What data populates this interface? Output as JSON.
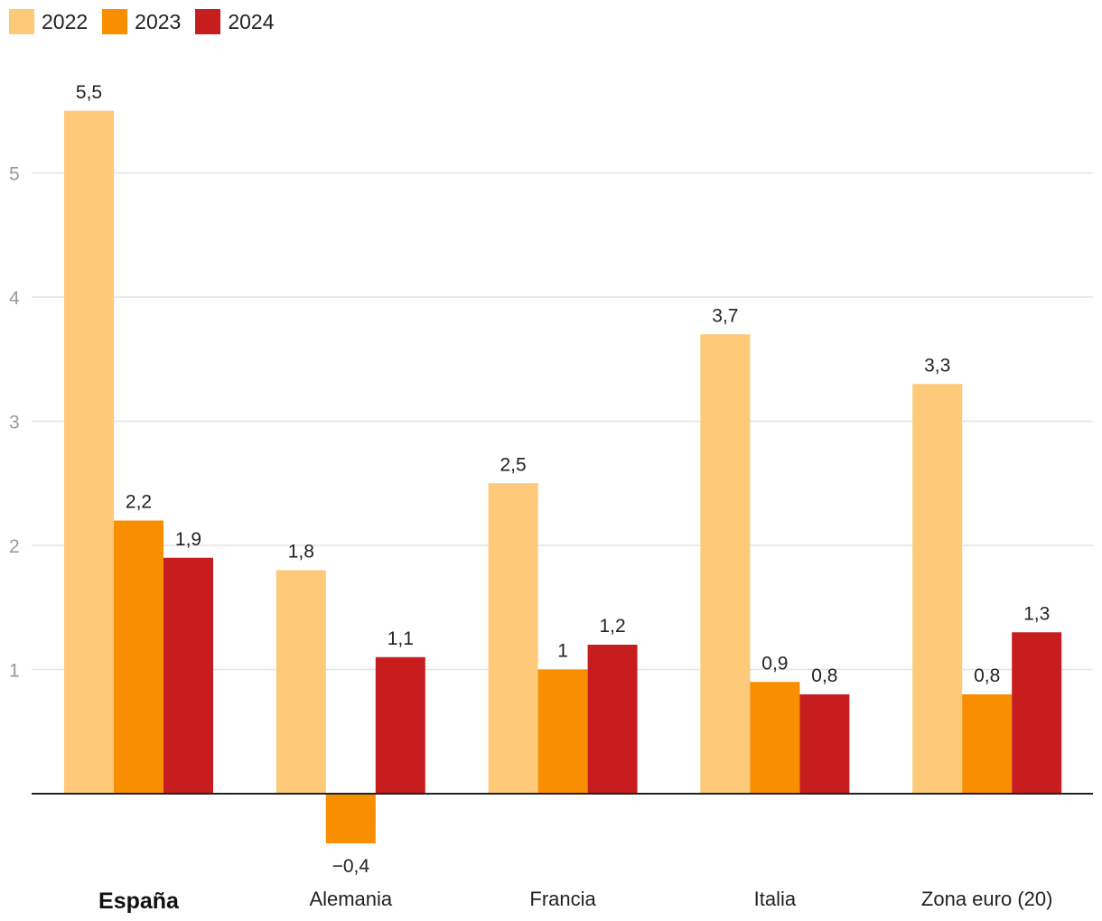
{
  "chart_data": {
    "type": "bar",
    "categories": [
      "España",
      "Alemania",
      "Francia",
      "Italia",
      "Zona euro (20)"
    ],
    "highlight_category": "España",
    "series": [
      {
        "name": "2022",
        "color": "#fec979",
        "values": [
          5.5,
          1.8,
          2.5,
          3.7,
          3.3
        ],
        "labels": [
          "5,5",
          "1,8",
          "2,5",
          "3,7",
          "3,3"
        ]
      },
      {
        "name": "2023",
        "color": "#f98e00",
        "values": [
          2.2,
          -0.4,
          1.0,
          0.9,
          0.8
        ],
        "labels": [
          "2,2",
          "−0,4",
          "1",
          "0,9",
          "0,8"
        ]
      },
      {
        "name": "2024",
        "color": "#c81d1e",
        "values": [
          1.9,
          1.1,
          1.2,
          0.8,
          1.3
        ],
        "labels": [
          "1,9",
          "1,1",
          "1,2",
          "0,8",
          "1,3"
        ]
      }
    ],
    "yticks": [
      1,
      2,
      3,
      4,
      5
    ],
    "ylim": [
      -0.5,
      5.5
    ],
    "grid": true,
    "legend": "top-left",
    "title": "",
    "xlabel": "",
    "ylabel": ""
  }
}
